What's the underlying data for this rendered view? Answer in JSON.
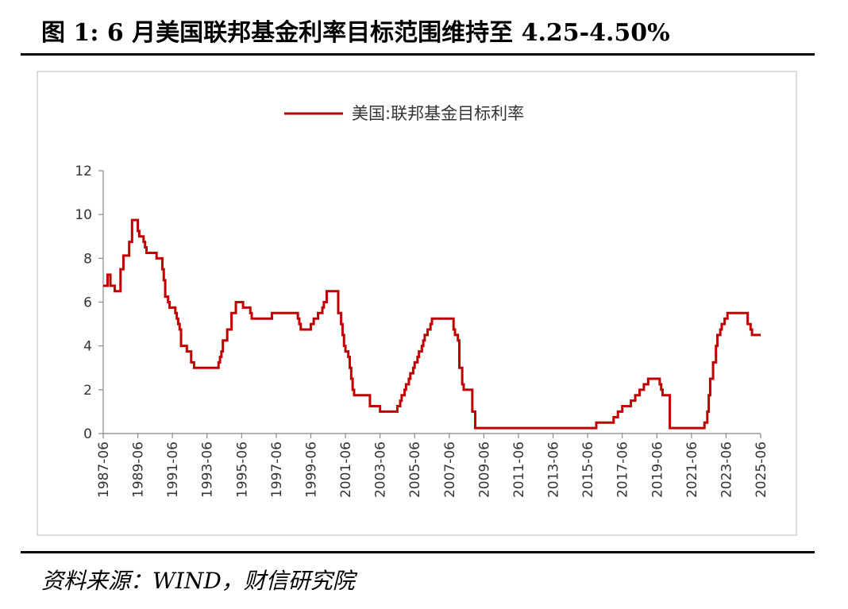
{
  "header": {
    "title": "图 1: 6 月美国联邦基金利率目标范围维持至 4.25-4.50%"
  },
  "footer": {
    "source": "资料来源：WIND，财信研究院"
  },
  "chart_data": {
    "type": "line",
    "step": true,
    "x": [
      "1987-06",
      "1987-09",
      "1987-11",
      "1988-02",
      "1988-06",
      "1988-08",
      "1988-12",
      "1989-02",
      "1989-06",
      "1989-07",
      "1989-10",
      "1989-11",
      "1989-12",
      "1990-06",
      "1990-07",
      "1990-11",
      "1990-12",
      "1991-01",
      "1991-03",
      "1991-04",
      "1991-08",
      "1991-09",
      "1991-10",
      "1991-11",
      "1991-12",
      "1992-04",
      "1992-07",
      "1992-09",
      "1994-01",
      "1994-02",
      "1994-03",
      "1994-04",
      "1994-05",
      "1994-08",
      "1994-11",
      "1995-02",
      "1995-07",
      "1995-12",
      "1996-01",
      "1997-02",
      "1997-03",
      "1998-08",
      "1998-09",
      "1998-10",
      "1998-11",
      "1999-06",
      "1999-08",
      "1999-11",
      "2000-02",
      "2000-03",
      "2000-05",
      "2000-12",
      "2001-01",
      "2001-03",
      "2001-04",
      "2001-05",
      "2001-06",
      "2001-08",
      "2001-09",
      "2001-10",
      "2001-11",
      "2001-12",
      "2002-10",
      "2002-11",
      "2003-05",
      "2003-06",
      "2004-05",
      "2004-06",
      "2004-08",
      "2004-09",
      "2004-11",
      "2004-12",
      "2005-02",
      "2005-03",
      "2005-05",
      "2005-06",
      "2005-08",
      "2005-09",
      "2005-11",
      "2005-12",
      "2006-01",
      "2006-03",
      "2006-05",
      "2006-06",
      "2007-08",
      "2007-09",
      "2007-10",
      "2007-12",
      "2008-01",
      "2008-03",
      "2008-04",
      "2008-10",
      "2008-12",
      "2015-11",
      "2015-12",
      "2016-12",
      "2017-03",
      "2017-06",
      "2017-12",
      "2018-03",
      "2018-06",
      "2018-09",
      "2018-12",
      "2019-07",
      "2019-08",
      "2019-09",
      "2019-10",
      "2020-02",
      "2020-03",
      "2022-02",
      "2022-03",
      "2022-05",
      "2022-06",
      "2022-07",
      "2022-09",
      "2022-11",
      "2022-12",
      "2023-02",
      "2023-03",
      "2023-05",
      "2023-07",
      "2024-08",
      "2024-09",
      "2024-11",
      "2024-12",
      "2025-06"
    ],
    "series": [
      {
        "name": "美国:联邦基金目标利率",
        "color": "#c00000",
        "values": [
          6.75,
          7.25,
          6.75,
          6.5,
          7.5,
          8.125,
          8.75,
          9.75,
          9.25,
          9.0,
          8.75,
          8.5,
          8.25,
          8.25,
          8.0,
          7.5,
          7.0,
          6.25,
          6.0,
          5.75,
          5.5,
          5.25,
          5.0,
          4.75,
          4.0,
          3.75,
          3.25,
          3.0,
          3.0,
          3.25,
          3.5,
          3.75,
          4.25,
          4.75,
          5.5,
          6.0,
          5.75,
          5.5,
          5.25,
          5.25,
          5.5,
          5.5,
          5.25,
          5.0,
          4.75,
          5.0,
          5.25,
          5.5,
          5.75,
          6.0,
          6.5,
          6.5,
          5.5,
          5.0,
          4.5,
          4.0,
          3.75,
          3.5,
          3.0,
          2.5,
          2.0,
          1.75,
          1.75,
          1.25,
          1.25,
          1.0,
          1.0,
          1.25,
          1.5,
          1.75,
          2.0,
          2.25,
          2.5,
          2.75,
          3.0,
          3.25,
          3.5,
          3.75,
          4.0,
          4.25,
          4.5,
          4.75,
          5.0,
          5.25,
          5.25,
          4.75,
          4.5,
          4.25,
          3.0,
          2.25,
          2.0,
          1.0,
          0.25,
          0.25,
          0.5,
          0.75,
          1.0,
          1.25,
          1.5,
          1.75,
          2.0,
          2.25,
          2.5,
          2.5,
          2.25,
          2.0,
          1.75,
          1.75,
          0.25,
          0.25,
          0.5,
          1.0,
          1.75,
          2.5,
          3.25,
          4.0,
          4.5,
          4.75,
          5.0,
          5.25,
          5.5,
          5.5,
          5.0,
          4.75,
          4.5,
          4.5
        ]
      }
    ],
    "xlim": [
      "1987-06",
      "2025-06"
    ],
    "xticks": [
      "1987-06",
      "1989-06",
      "1991-06",
      "1993-06",
      "1995-06",
      "1997-06",
      "1999-06",
      "2001-06",
      "2003-06",
      "2005-06",
      "2007-06",
      "2009-06",
      "2011-06",
      "2013-06",
      "2015-06",
      "2017-06",
      "2019-06",
      "2021-06",
      "2023-06",
      "2025-06"
    ],
    "ylim": [
      0,
      12
    ],
    "yticks": [
      0,
      2,
      4,
      6,
      8,
      10,
      12
    ],
    "legend": "top"
  }
}
